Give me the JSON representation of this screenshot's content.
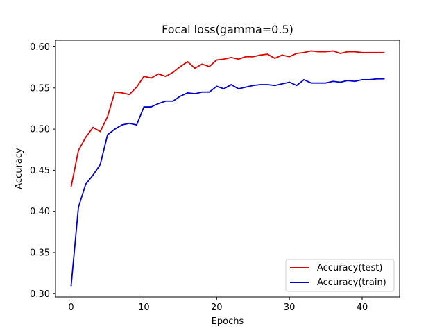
{
  "chart_data": {
    "type": "line",
    "title": "Focal loss(gamma=0.5)",
    "xlabel": "Epochs",
    "ylabel": "Accuracy",
    "xlim": [
      -2.15,
      45.15
    ],
    "ylim": [
      0.296,
      0.608
    ],
    "xticks": [
      0,
      10,
      20,
      30,
      40
    ],
    "yticks": [
      0.3,
      0.35,
      0.4,
      0.45,
      0.5,
      0.55,
      0.6
    ],
    "ytick_labels": [
      "0.30",
      "0.35",
      "0.40",
      "0.45",
      "0.50",
      "0.55",
      "0.60"
    ],
    "grid": false,
    "legend_position": "lower-right",
    "x": [
      0,
      1,
      2,
      3,
      4,
      5,
      6,
      7,
      8,
      9,
      10,
      11,
      12,
      13,
      14,
      15,
      16,
      17,
      18,
      19,
      20,
      21,
      22,
      23,
      24,
      25,
      26,
      27,
      28,
      29,
      30,
      31,
      32,
      33,
      34,
      35,
      36,
      37,
      38,
      39,
      40,
      41,
      42,
      43
    ],
    "series": [
      {
        "name": "Accuracy(test)",
        "color": "#e00000",
        "values": [
          0.43,
          0.474,
          0.49,
          0.502,
          0.497,
          0.515,
          0.545,
          0.544,
          0.542,
          0.551,
          0.564,
          0.562,
          0.567,
          0.564,
          0.569,
          0.576,
          0.582,
          0.574,
          0.579,
          0.576,
          0.584,
          0.585,
          0.587,
          0.585,
          0.588,
          0.588,
          0.59,
          0.591,
          0.586,
          0.59,
          0.588,
          0.592,
          0.593,
          0.595,
          0.594,
          0.594,
          0.595,
          0.592,
          0.594,
          0.594,
          0.593,
          0.593,
          0.593,
          0.593
        ]
      },
      {
        "name": "Accuracy(train)",
        "color": "#0000cc",
        "values": [
          0.31,
          0.405,
          0.433,
          0.444,
          0.457,
          0.493,
          0.5,
          0.505,
          0.507,
          0.505,
          0.527,
          0.527,
          0.531,
          0.534,
          0.534,
          0.54,
          0.544,
          0.543,
          0.545,
          0.545,
          0.552,
          0.549,
          0.554,
          0.549,
          0.551,
          0.553,
          0.554,
          0.554,
          0.553,
          0.555,
          0.557,
          0.553,
          0.56,
          0.556,
          0.556,
          0.556,
          0.558,
          0.557,
          0.559,
          0.558,
          0.56,
          0.56,
          0.561,
          0.561
        ]
      }
    ]
  }
}
